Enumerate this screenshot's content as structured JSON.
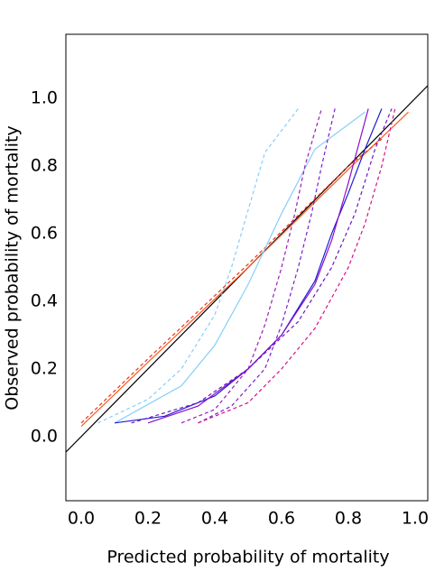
{
  "chart_data": {
    "type": "line",
    "xlabel": "Predicted probability of mortality",
    "ylabel": "Observed probability of mortality",
    "xlim": [
      -0.046,
      1.038
    ],
    "ylim": [
      -0.19,
      1.19
    ],
    "xticks": [
      {
        "value": 0,
        "label": "0.0"
      },
      {
        "value": 0.2,
        "label": "0.2"
      },
      {
        "value": 0.4,
        "label": "0.4"
      },
      {
        "value": 0.6,
        "label": "0.6"
      },
      {
        "value": 0.8,
        "label": "0.8"
      },
      {
        "value": 1,
        "label": "1.0"
      }
    ],
    "yticks": [
      {
        "value": 0,
        "label": "0.0"
      },
      {
        "value": 0.2,
        "label": "0.2"
      },
      {
        "value": 0.4,
        "label": "0.4"
      },
      {
        "value": 0.6,
        "label": "0.6"
      },
      {
        "value": 0.8,
        "label": "0.8"
      },
      {
        "value": 1,
        "label": "1.0"
      }
    ],
    "series": [
      {
        "color": "#000000",
        "dashed": false,
        "x": [
          -0.046,
          1.038
        ],
        "values": [
          -0.046,
          1.038
        ]
      },
      {
        "color": "#ff5a1f",
        "dashed": false,
        "x": [
          0.0,
          0.2,
          0.5,
          0.8,
          0.98
        ],
        "values": [
          0.03,
          0.22,
          0.5,
          0.79,
          0.96
        ]
      },
      {
        "color": "#e8341c",
        "dashed": true,
        "x": [
          0.0,
          0.2,
          0.5,
          0.8,
          0.9
        ],
        "values": [
          0.04,
          0.23,
          0.51,
          0.8,
          0.88
        ]
      },
      {
        "color": "#87cefa",
        "dashed": false,
        "x": [
          0.1,
          0.3,
          0.4,
          0.5,
          0.6,
          0.7,
          0.85
        ],
        "values": [
          0.04,
          0.15,
          0.27,
          0.45,
          0.66,
          0.85,
          0.96
        ]
      },
      {
        "color": "#87cefa",
        "dashed": true,
        "x": [
          0.05,
          0.2,
          0.3,
          0.4,
          0.45,
          0.5,
          0.55,
          0.65
        ],
        "values": [
          0.04,
          0.11,
          0.2,
          0.36,
          0.5,
          0.67,
          0.84,
          0.97
        ]
      },
      {
        "color": "#9a1fb5",
        "dashed": true,
        "x": [
          0.3,
          0.4,
          0.5,
          0.55,
          0.6,
          0.64,
          0.67,
          0.72
        ],
        "values": [
          0.04,
          0.08,
          0.2,
          0.33,
          0.5,
          0.66,
          0.8,
          0.97
        ]
      },
      {
        "color": "#7a1fd0",
        "dashed": true,
        "x": [
          0.35,
          0.45,
          0.55,
          0.6,
          0.65,
          0.69,
          0.72,
          0.76
        ],
        "values": [
          0.04,
          0.09,
          0.2,
          0.33,
          0.5,
          0.66,
          0.8,
          0.97
        ]
      },
      {
        "color": "#1c1cd6",
        "dashed": false,
        "x": [
          0.1,
          0.25,
          0.4,
          0.5,
          0.6,
          0.7,
          0.75,
          0.8,
          0.85,
          0.9
        ],
        "values": [
          0.04,
          0.06,
          0.12,
          0.2,
          0.3,
          0.46,
          0.6,
          0.72,
          0.85,
          0.97
        ]
      },
      {
        "color": "#8c10c8",
        "dashed": false,
        "x": [
          0.2,
          0.35,
          0.5,
          0.6,
          0.7,
          0.75,
          0.8,
          0.86
        ],
        "values": [
          0.04,
          0.09,
          0.2,
          0.3,
          0.45,
          0.58,
          0.75,
          0.97
        ]
      },
      {
        "color": "#d8108a",
        "dashed": true,
        "x": [
          0.35,
          0.5,
          0.6,
          0.7,
          0.8,
          0.85,
          0.9,
          0.94
        ],
        "values": [
          0.04,
          0.1,
          0.2,
          0.32,
          0.5,
          0.63,
          0.8,
          0.97
        ]
      },
      {
        "color": "#6a18c8",
        "dashed": true,
        "x": [
          0.15,
          0.35,
          0.5,
          0.65,
          0.75,
          0.82,
          0.88,
          0.93
        ],
        "values": [
          0.04,
          0.1,
          0.2,
          0.34,
          0.5,
          0.66,
          0.85,
          0.97
        ]
      }
    ]
  }
}
